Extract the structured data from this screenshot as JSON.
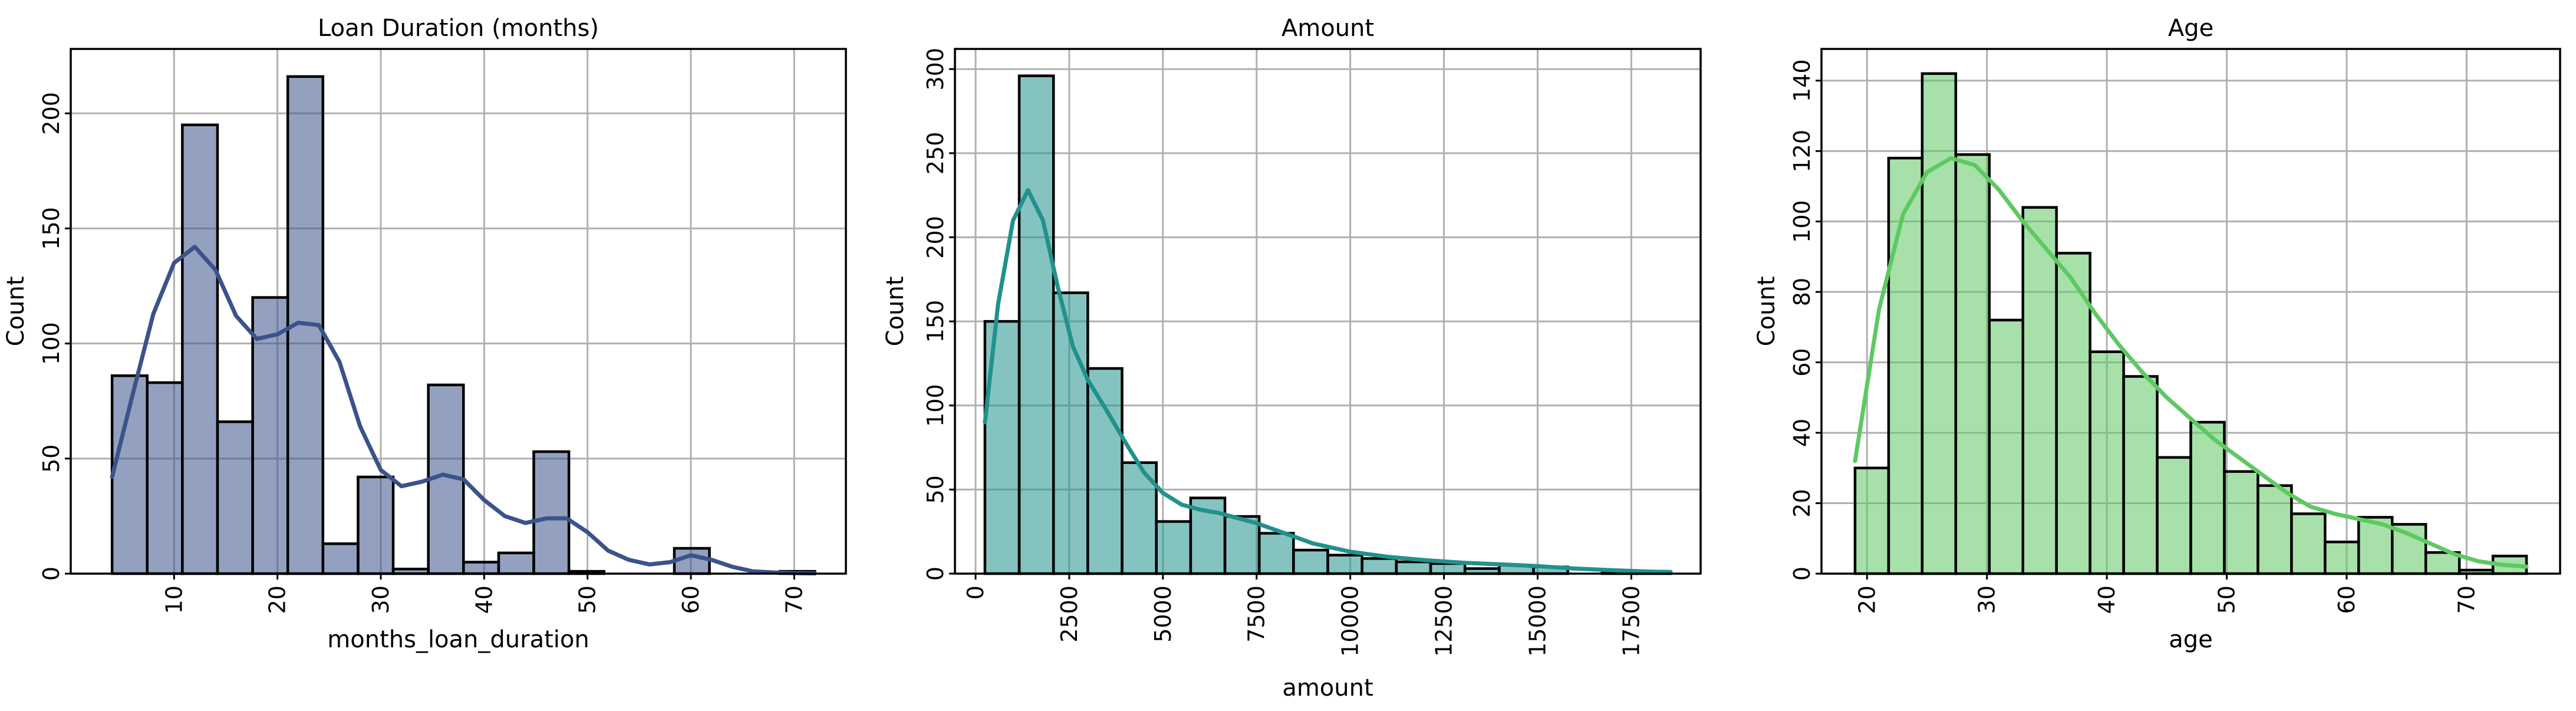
{
  "chart_data": [
    {
      "type": "bar",
      "title": "Loan Duration (months)",
      "xlabel": "months_loan_duration",
      "ylabel": "Count",
      "color": "#3b528b",
      "bin_edges": [
        4,
        7.4,
        10.8,
        14.2,
        17.6,
        21,
        24.4,
        27.8,
        31.2,
        34.6,
        38,
        41.4,
        44.8,
        48.2,
        51.6,
        55,
        58.4,
        61.8,
        65.2,
        68.6,
        72
      ],
      "counts": [
        86,
        83,
        195,
        66,
        120,
        216,
        13,
        42,
        2,
        82,
        5,
        9,
        53,
        1,
        0,
        0,
        11,
        0,
        0,
        1
      ],
      "kde": {
        "x": [
          4,
          6,
          8,
          10,
          12,
          14,
          16,
          18,
          20,
          22,
          24,
          26,
          28,
          30,
          32,
          34,
          36,
          38,
          40,
          42,
          44,
          46,
          48,
          50,
          52,
          54,
          56,
          58,
          60,
          62,
          64,
          66,
          68,
          70,
          72
        ],
        "y": [
          42,
          78,
          113,
          135,
          142,
          132,
          112,
          102,
          104,
          109,
          108,
          92,
          64,
          45,
          38,
          40,
          43,
          41,
          32,
          25,
          22,
          24,
          24,
          18,
          10,
          6,
          4,
          5,
          8,
          6,
          3,
          1,
          0.5,
          0.2,
          0.1
        ]
      },
      "xlim": [
        0,
        75
      ],
      "ylim": [
        0,
        228
      ],
      "xticks": [
        10,
        20,
        30,
        40,
        50,
        60,
        70
      ],
      "yticks": [
        0,
        50,
        100,
        150,
        200
      ],
      "grid": true
    },
    {
      "type": "bar",
      "title": "Amount",
      "xlabel": "amount",
      "ylabel": "Count",
      "color": "#21918c",
      "bin_edges": [
        250,
        1165,
        2080,
        2995,
        3910,
        4825,
        5740,
        6655,
        7570,
        8485,
        9400,
        10315,
        11230,
        12145,
        13060,
        13975,
        14890,
        15805,
        16720,
        17635,
        18550
      ],
      "counts": [
        150,
        296,
        167,
        122,
        66,
        31,
        45,
        34,
        24,
        14,
        11,
        9,
        7,
        6,
        3,
        5,
        4,
        0,
        1,
        1
      ],
      "kde": {
        "x": [
          250,
          600,
          1000,
          1400,
          1800,
          2200,
          2600,
          3000,
          3500,
          4000,
          4500,
          5000,
          5500,
          6000,
          6500,
          7000,
          7500,
          8000,
          9000,
          10000,
          11000,
          12000,
          13000,
          14000,
          15000,
          16000,
          17000,
          18000,
          18550
        ],
        "y": [
          90,
          160,
          210,
          228,
          210,
          170,
          135,
          115,
          97,
          78,
          60,
          48,
          41,
          38,
          36,
          33,
          30,
          26,
          18,
          13,
          10,
          8,
          6.5,
          5.5,
          4.5,
          3,
          2,
          1.2,
          1
        ]
      },
      "xlim": [
        -550,
        19350
      ],
      "ylim": [
        0,
        312
      ],
      "xticks": [
        0,
        2500,
        5000,
        7500,
        10000,
        12500,
        15000,
        17500
      ],
      "yticks": [
        0,
        50,
        100,
        150,
        200,
        250,
        300
      ],
      "grid": true
    },
    {
      "type": "bar",
      "title": "Age",
      "xlabel": "age",
      "ylabel": "Count",
      "color": "#5ec962",
      "bin_edges": [
        19,
        21.8,
        24.6,
        27.4,
        30.2,
        33,
        35.8,
        38.6,
        41.4,
        44.2,
        47,
        49.8,
        52.6,
        55.4,
        58.2,
        61,
        63.8,
        66.6,
        69.4,
        72.2,
        75
      ],
      "counts": [
        30,
        118,
        142,
        119,
        72,
        104,
        91,
        63,
        56,
        33,
        43,
        29,
        25,
        17,
        9,
        16,
        14,
        6,
        1,
        5
      ],
      "kde": {
        "x": [
          19,
          21,
          23,
          25,
          27,
          29,
          31,
          33,
          35,
          37,
          39,
          41,
          43,
          45,
          47,
          49,
          51,
          53,
          55,
          57,
          59,
          61,
          63,
          65,
          67,
          69,
          71,
          73,
          75
        ],
        "y": [
          32,
          75,
          102,
          114,
          118,
          116,
          109,
          100,
          92,
          84,
          74,
          65,
          57,
          50,
          44,
          38,
          33,
          28,
          23,
          19,
          17,
          15.5,
          14,
          11.5,
          8.5,
          5.5,
          3.5,
          2.5,
          2
        ]
      },
      "xlim": [
        16.2,
        77.8
      ],
      "ylim": [
        0,
        149
      ],
      "xticks": [
        20,
        30,
        40,
        50,
        60,
        70
      ],
      "yticks": [
        0,
        20,
        40,
        60,
        80,
        100,
        120,
        140
      ],
      "grid": true
    }
  ]
}
